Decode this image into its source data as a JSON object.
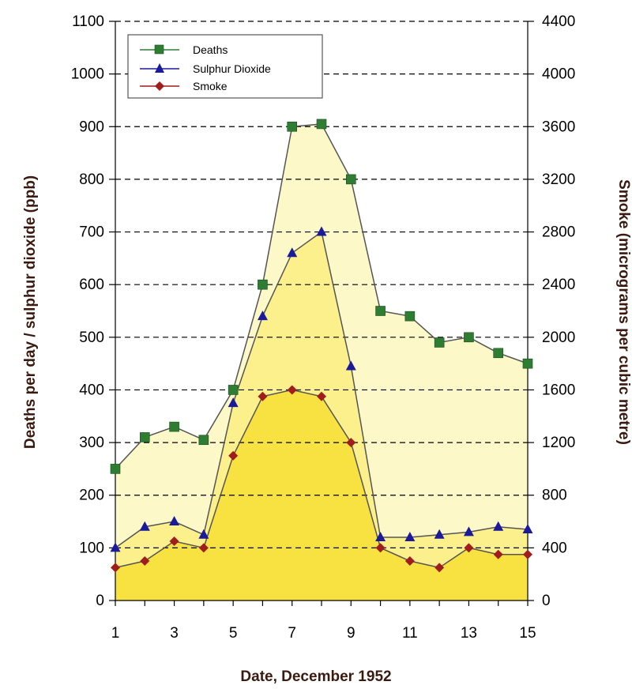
{
  "chart_data": {
    "type": "line",
    "xlabel": "Date, December 1952",
    "ylabel_left": "Deaths per day / sulphur dioxide (ppb)",
    "ylabel_right": "Smoke (micrograms per cubic metre)",
    "x": [
      1,
      2,
      3,
      4,
      5,
      6,
      7,
      8,
      9,
      10,
      11,
      12,
      13,
      14,
      15
    ],
    "xticks": [
      "1",
      "3",
      "5",
      "7",
      "9",
      "11",
      "13",
      "15"
    ],
    "xticks_values": [
      1,
      3,
      5,
      7,
      9,
      11,
      13,
      15
    ],
    "ylim_left": [
      0,
      1100
    ],
    "yticks_left": [
      "0",
      "100",
      "200",
      "300",
      "400",
      "500",
      "600",
      "700",
      "800",
      "900",
      "1000",
      "1100"
    ],
    "ylim_right": [
      0,
      4400
    ],
    "yticks_right": [
      "0",
      "400",
      "800",
      "1200",
      "1600",
      "2000",
      "2400",
      "2800",
      "3200",
      "3600",
      "4000",
      "4400"
    ],
    "grid": "horizontal-dashed",
    "legend_position": "top-left",
    "series": [
      {
        "name": "Deaths",
        "axis": "left",
        "marker": "square",
        "color": "#2e7d32",
        "fill": "#fdf8c8",
        "values": [
          250,
          310,
          330,
          305,
          400,
          600,
          900,
          905,
          800,
          550,
          540,
          490,
          500,
          470,
          450
        ]
      },
      {
        "name": "Sulphur Dioxide",
        "axis": "left",
        "marker": "triangle",
        "color": "#1a1a9a",
        "fill": "#fbf08c",
        "values": [
          100,
          140,
          150,
          125,
          375,
          540,
          660,
          700,
          445,
          120,
          120,
          125,
          130,
          140,
          135
        ]
      },
      {
        "name": "Smoke",
        "axis": "right",
        "marker": "diamond",
        "color": "#a11c1c",
        "fill": "#f8e242",
        "values": [
          250,
          300,
          450,
          400,
          1100,
          1550,
          1600,
          1550,
          1200,
          400,
          300,
          250,
          400,
          350,
          350
        ]
      }
    ]
  }
}
